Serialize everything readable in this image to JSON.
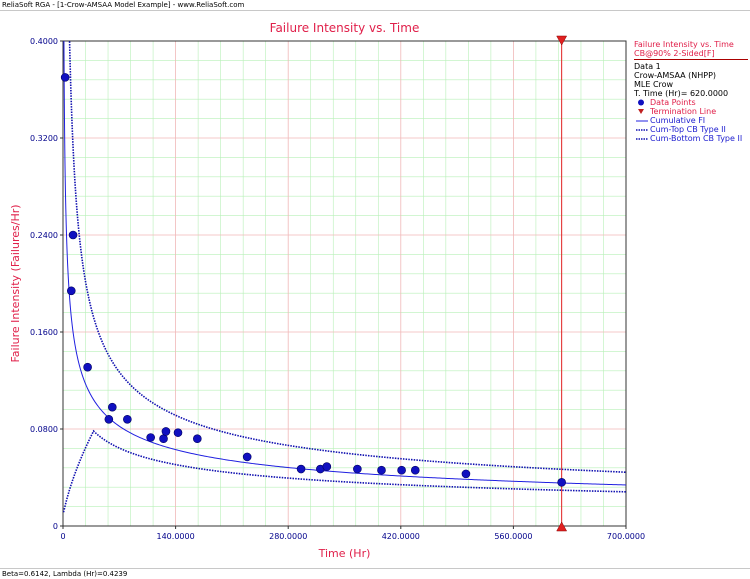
{
  "window": {
    "title": "ReliaSoft RGA - [1-Crow-AMSAA Model Example] - www.ReliaSoft.com"
  },
  "status": {
    "text": "Beta=0.6142, Lambda (Hr)=0.4239"
  },
  "legend": {
    "header1": "Failure Intensity vs. Time",
    "header2": "CB@90% 2-Sided[F]",
    "dataset": "Data 1",
    "model": "Crow-AMSAA (NHPP)",
    "method": "MLE Crow",
    "ttime": "T. Time (Hr)= 620.0000",
    "items": [
      "Data Points",
      "Termination Line",
      "Cumulative FI",
      "Cum-Top CB Type II",
      "Cum-Bottom CB Type II"
    ]
  },
  "colors": {
    "title": "#e0204a",
    "axis_text": "#00008b",
    "points": "#1010c0",
    "line": "#2020e0",
    "termination": "#e02020",
    "grid": "#f0b8b8",
    "minorgrid": "#b8f0b8"
  },
  "chart_data": {
    "type": "scatter",
    "title": "Failure Intensity vs. Time",
    "xlabel": "Time (Hr)",
    "ylabel": "Failure Intensity (Failures/Hr)",
    "xlim": [
      0,
      700
    ],
    "ylim": [
      0,
      0.4
    ],
    "xticks": [
      "0",
      "140.0000",
      "280.0000",
      "420.0000",
      "560.0000",
      "700.0000"
    ],
    "yticks": [
      "0",
      "0.0800",
      "0.1600",
      "0.2400",
      "0.3200",
      "0.4000"
    ],
    "grid": true,
    "beta": 0.6142,
    "lambda": 0.4239,
    "termination_x": 620,
    "points": [
      [
        2.7,
        0.37
      ],
      [
        10.3,
        0.194
      ],
      [
        12.5,
        0.24
      ],
      [
        30.6,
        0.131
      ],
      [
        57.0,
        0.088
      ],
      [
        61.3,
        0.098
      ],
      [
        80.0,
        0.088
      ],
      [
        109.0,
        0.073
      ],
      [
        125.0,
        0.072
      ],
      [
        128.0,
        0.078
      ],
      [
        143.0,
        0.077
      ],
      [
        167.0,
        0.072
      ],
      [
        229.0,
        0.057
      ],
      [
        296.0,
        0.047
      ],
      [
        320.0,
        0.047
      ],
      [
        328.0,
        0.049
      ],
      [
        366.0,
        0.047
      ],
      [
        396.0,
        0.046
      ],
      [
        421.0,
        0.046
      ],
      [
        438.0,
        0.046
      ],
      [
        501.0,
        0.043
      ],
      [
        620.0,
        0.036
      ]
    ]
  }
}
